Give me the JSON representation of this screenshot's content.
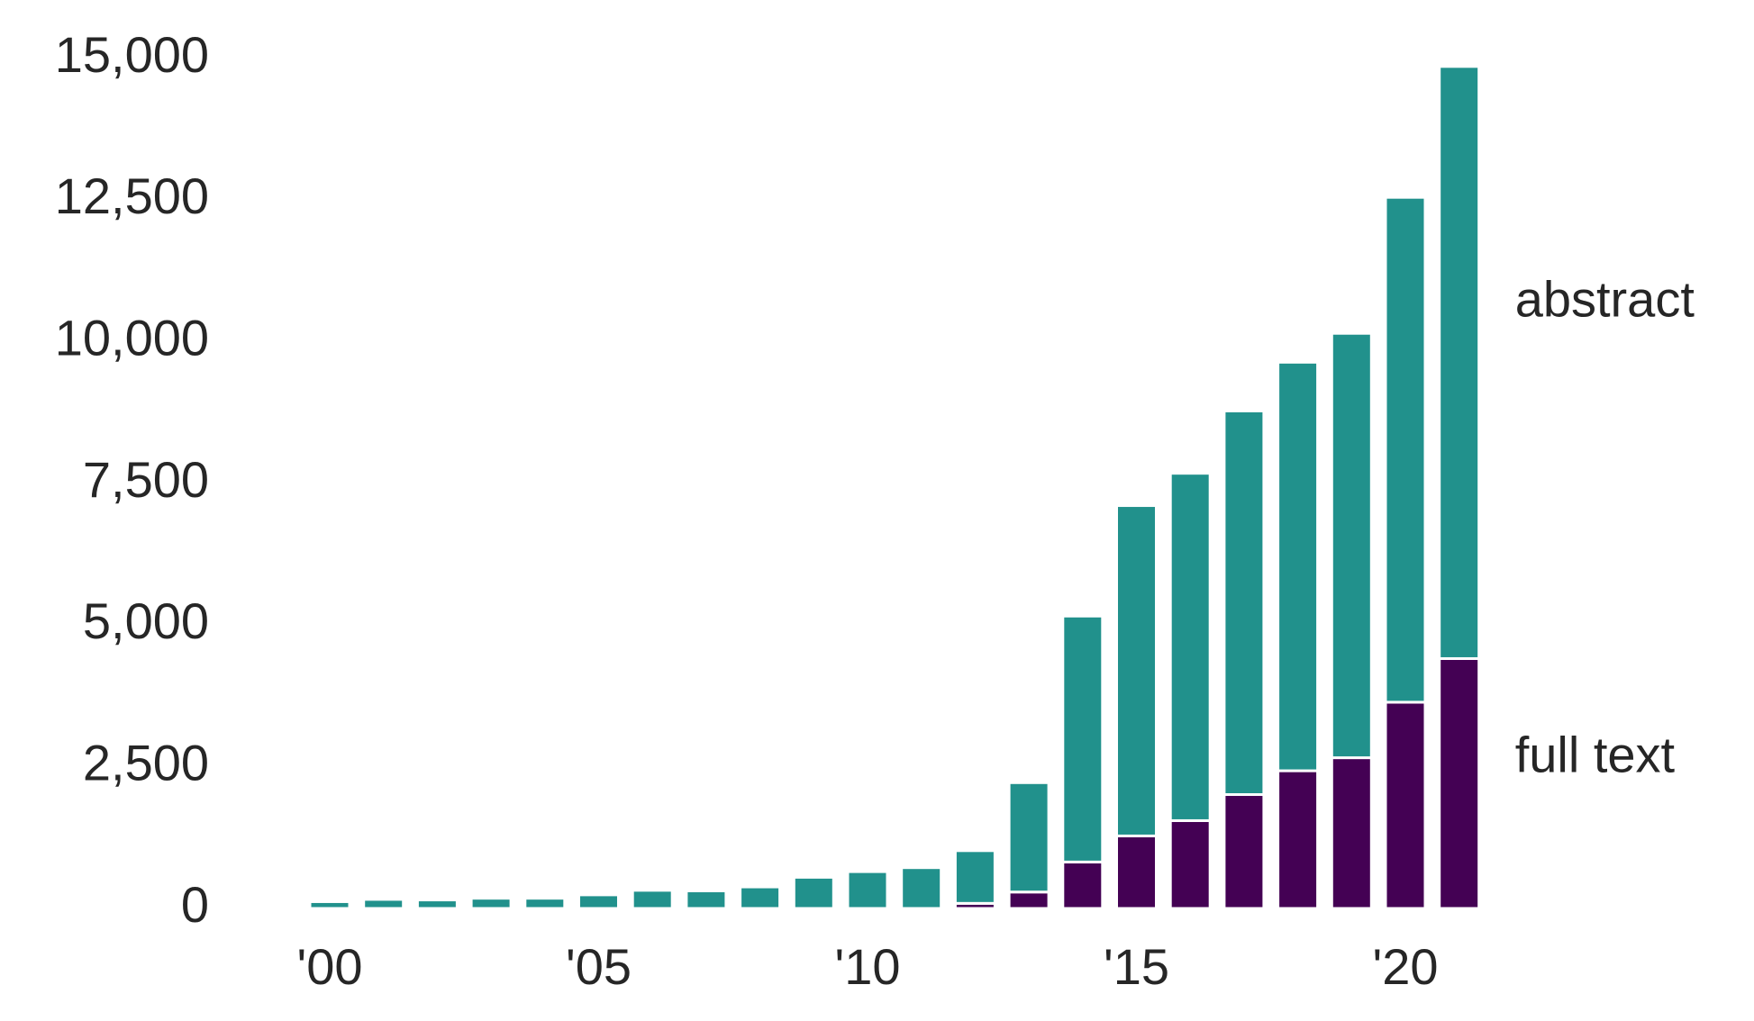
{
  "chart_data": {
    "type": "bar",
    "stacked": true,
    "x": [
      2000,
      2001,
      2002,
      2003,
      2004,
      2005,
      2006,
      2007,
      2008,
      2009,
      2010,
      2011,
      2012,
      2013,
      2014,
      2015,
      2016,
      2017,
      2018,
      2019,
      2020,
      2021
    ],
    "x_tick_values": [
      2000,
      2005,
      2010,
      2015,
      2020
    ],
    "x_tick_labels": [
      "'00",
      "'05",
      "'10",
      "'15",
      "'20"
    ],
    "series": [
      {
        "name": "full text",
        "color": "#440154",
        "values": [
          0,
          0,
          0,
          0,
          0,
          0,
          0,
          0,
          0,
          0,
          0,
          0,
          90,
          290,
          820,
          1280,
          1550,
          2010,
          2430,
          2660,
          3640,
          4410
        ]
      },
      {
        "name": "abstract",
        "color": "#21918c",
        "values": [
          120,
          160,
          150,
          180,
          180,
          240,
          320,
          310,
          380,
          550,
          650,
          720,
          930,
          1930,
          4340,
          5830,
          6130,
          6770,
          7210,
          7490,
          8910,
          10450
        ]
      }
    ],
    "ylim": [
      0,
      15000
    ],
    "y_ticks": [
      0,
      2500,
      5000,
      7500,
      10000,
      12500,
      15000
    ],
    "y_tick_labels": [
      "0",
      "2,500",
      "5,000",
      "7,500",
      "10,000",
      "12,500",
      "15,000"
    ],
    "grid": false,
    "legend": "right, labels beside the last bar",
    "title": "",
    "xlabel": "",
    "ylabel": ""
  }
}
